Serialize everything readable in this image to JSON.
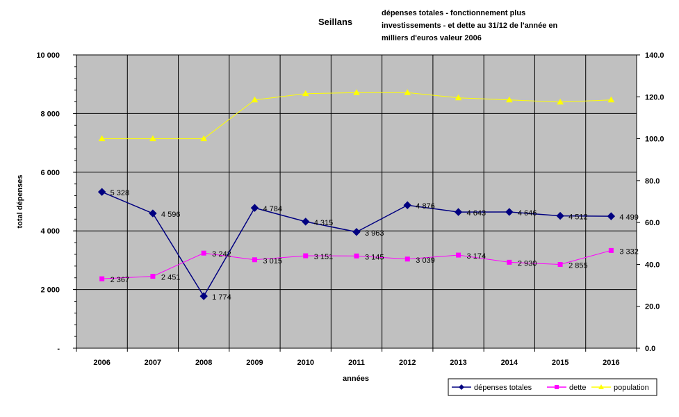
{
  "chart_data": {
    "type": "line",
    "title": "Seillans",
    "subtitle_lines": [
      "dépenses totales - fonctionnement plus",
      "investissements - et dette au 31/12 de l'année en",
      "milliers d'euros valeur 2006"
    ],
    "xlabel": "années",
    "ylabel": "total dépenses",
    "categories": [
      "2006",
      "2007",
      "2008",
      "2009",
      "2010",
      "2011",
      "2012",
      "2013",
      "2014",
      "2015",
      "2016"
    ],
    "y_left": {
      "min": 0,
      "max": 10000,
      "ticks": [
        "-",
        "2 000",
        "4 000",
        "6 000",
        "8 000",
        "10 000"
      ],
      "tick_values": [
        0,
        2000,
        4000,
        6000,
        8000,
        10000
      ]
    },
    "y_right": {
      "min": 0,
      "max": 140,
      "ticks": [
        "0.0",
        "20.0",
        "40.0",
        "60.0",
        "80.0",
        "100.0",
        "120.0",
        "140.0"
      ],
      "tick_values": [
        0,
        20,
        40,
        60,
        80,
        100,
        120,
        140
      ]
    },
    "grid": true,
    "legend_position": "bottom-right",
    "series": [
      {
        "name": "dépenses totales",
        "axis": "left",
        "color": "#000080",
        "marker": "diamond",
        "values": [
          5328,
          4596,
          1774,
          4784,
          4315,
          3963,
          4876,
          4643,
          4646,
          4512,
          4499
        ],
        "labels": [
          "5 328",
          "4 596",
          "1 774",
          "4 784",
          "4 315",
          "3 963",
          "4 876",
          "4 643",
          "4 646",
          "4 512",
          "4 499"
        ]
      },
      {
        "name": "dette",
        "axis": "left",
        "color": "#FF00FF",
        "marker": "square",
        "values": [
          2367,
          2451,
          3242,
          3015,
          3151,
          3145,
          3039,
          3174,
          2930,
          2855,
          3332
        ],
        "labels": [
          "2 367",
          "2 451",
          "3 242",
          "3 015",
          "3 151",
          "3 145",
          "3 039",
          "3 174",
          "2 930",
          "2 855",
          "3 332"
        ]
      },
      {
        "name": "population",
        "axis": "right",
        "color": "#FFFF00",
        "marker": "triangle",
        "values": [
          100.0,
          100.0,
          100.0,
          118.5,
          121.5,
          122.0,
          122.0,
          119.5,
          118.5,
          117.5,
          118.5
        ]
      }
    ],
    "plot_background": "#C0C0C0"
  }
}
